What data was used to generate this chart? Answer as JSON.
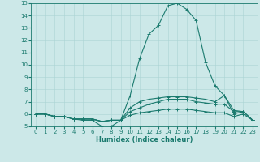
{
  "xlabel": "Humidex (Indice chaleur)",
  "bg_color": "#cce8e8",
  "line_color": "#1a7a6e",
  "xlim": [
    -0.5,
    23.5
  ],
  "ylim": [
    5,
    15
  ],
  "xticks": [
    0,
    1,
    2,
    3,
    4,
    5,
    6,
    7,
    8,
    9,
    10,
    11,
    12,
    13,
    14,
    15,
    16,
    17,
    18,
    19,
    20,
    21,
    22,
    23
  ],
  "yticks": [
    5,
    6,
    7,
    8,
    9,
    10,
    11,
    12,
    13,
    14,
    15
  ],
  "curves": [
    {
      "x": [
        0,
        1,
        2,
        3,
        4,
        5,
        6,
        7,
        8,
        9,
        10,
        11,
        12,
        13,
        14,
        15,
        16,
        17,
        18,
        19,
        20,
        21,
        22,
        23
      ],
      "y": [
        6.0,
        6.0,
        5.8,
        5.8,
        5.6,
        5.5,
        5.5,
        5.0,
        5.0,
        5.5,
        7.5,
        10.5,
        12.5,
        13.2,
        14.8,
        15.0,
        14.5,
        13.6,
        10.2,
        8.3,
        7.5,
        6.3,
        6.2,
        5.5
      ]
    },
    {
      "x": [
        0,
        1,
        2,
        3,
        4,
        5,
        6,
        7,
        8,
        9,
        10,
        11,
        12,
        13,
        14,
        15,
        16,
        17,
        18,
        19,
        20,
        21,
        22,
        23
      ],
      "y": [
        6.0,
        6.0,
        5.8,
        5.8,
        5.6,
        5.6,
        5.6,
        5.4,
        5.5,
        5.5,
        6.5,
        7.0,
        7.2,
        7.3,
        7.4,
        7.4,
        7.4,
        7.3,
        7.2,
        7.0,
        7.5,
        6.0,
        6.2,
        5.5
      ]
    },
    {
      "x": [
        0,
        1,
        2,
        3,
        4,
        5,
        6,
        7,
        8,
        9,
        10,
        11,
        12,
        13,
        14,
        15,
        16,
        17,
        18,
        19,
        20,
        21,
        22,
        23
      ],
      "y": [
        6.0,
        6.0,
        5.8,
        5.8,
        5.6,
        5.6,
        5.6,
        5.4,
        5.5,
        5.5,
        6.2,
        6.5,
        6.8,
        7.0,
        7.2,
        7.2,
        7.2,
        7.0,
        6.9,
        6.8,
        6.8,
        6.2,
        6.2,
        5.5
      ]
    },
    {
      "x": [
        0,
        1,
        2,
        3,
        4,
        5,
        6,
        7,
        8,
        9,
        10,
        11,
        12,
        13,
        14,
        15,
        16,
        17,
        18,
        19,
        20,
        21,
        22,
        23
      ],
      "y": [
        6.0,
        6.0,
        5.8,
        5.8,
        5.6,
        5.6,
        5.6,
        5.4,
        5.5,
        5.5,
        5.9,
        6.1,
        6.2,
        6.3,
        6.4,
        6.4,
        6.4,
        6.3,
        6.2,
        6.1,
        6.1,
        5.8,
        6.0,
        5.5
      ]
    }
  ],
  "figsize": [
    3.2,
    2.0
  ],
  "dpi": 100,
  "xlabel_fontsize": 6.0,
  "tick_labelsize": 5.0,
  "linewidth": 0.8,
  "markersize": 2.5,
  "grid_color": "#aad4d4",
  "grid_linewidth": 0.4
}
